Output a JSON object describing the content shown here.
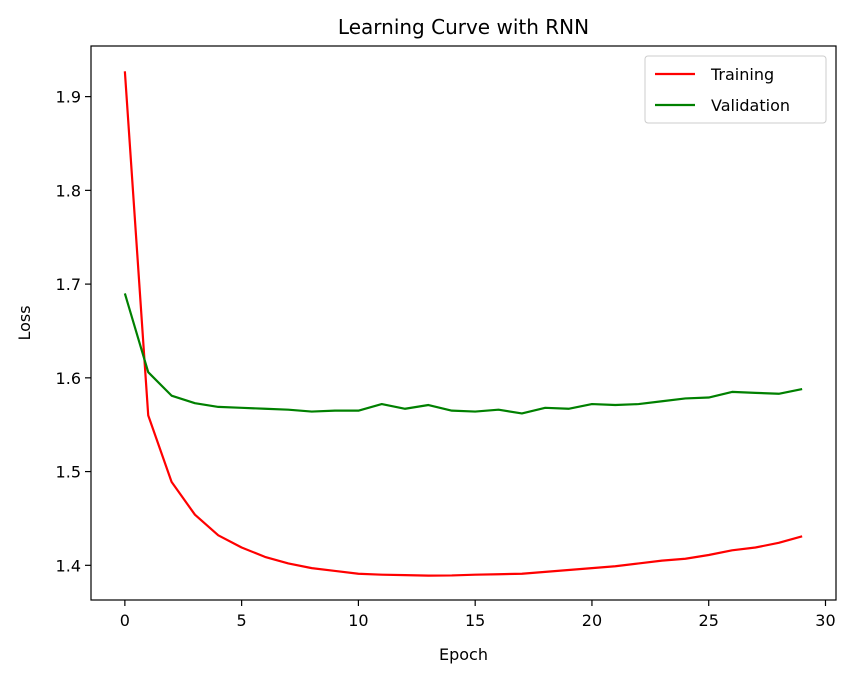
{
  "chart_data": {
    "type": "line",
    "title": "Learning Curve with RNN",
    "xlabel": "Epoch",
    "ylabel": "Loss",
    "xlim": [
      -1.45,
      30.45
    ],
    "ylim": [
      1.363,
      1.954
    ],
    "xticks": [
      0,
      5,
      10,
      15,
      20,
      25,
      30
    ],
    "yticks": [
      1.4,
      1.5,
      1.6,
      1.7,
      1.8,
      1.9
    ],
    "legend_position": "top-right",
    "grid": false,
    "x": [
      0,
      1,
      2,
      3,
      4,
      5,
      6,
      7,
      8,
      9,
      10,
      11,
      12,
      13,
      14,
      15,
      16,
      17,
      18,
      19,
      20,
      21,
      22,
      23,
      24,
      25,
      26,
      27,
      28,
      29
    ],
    "series": [
      {
        "name": "Training",
        "color": "#ff0000",
        "values": [
          1.927,
          1.56,
          1.489,
          1.454,
          1.432,
          1.419,
          1.409,
          1.402,
          1.397,
          1.394,
          1.391,
          1.39,
          1.3895,
          1.389,
          1.3892,
          1.39,
          1.3905,
          1.391,
          1.393,
          1.395,
          1.397,
          1.399,
          1.402,
          1.405,
          1.407,
          1.411,
          1.416,
          1.419,
          1.424,
          1.431
        ]
      },
      {
        "name": "Validation",
        "color": "#008000",
        "values": [
          1.69,
          1.606,
          1.581,
          1.573,
          1.569,
          1.568,
          1.567,
          1.566,
          1.564,
          1.565,
          1.565,
          1.572,
          1.567,
          1.571,
          1.565,
          1.564,
          1.566,
          1.562,
          1.568,
          1.567,
          1.572,
          1.571,
          1.572,
          1.575,
          1.578,
          1.579,
          1.585,
          1.584,
          1.583,
          1.588
        ]
      }
    ]
  }
}
